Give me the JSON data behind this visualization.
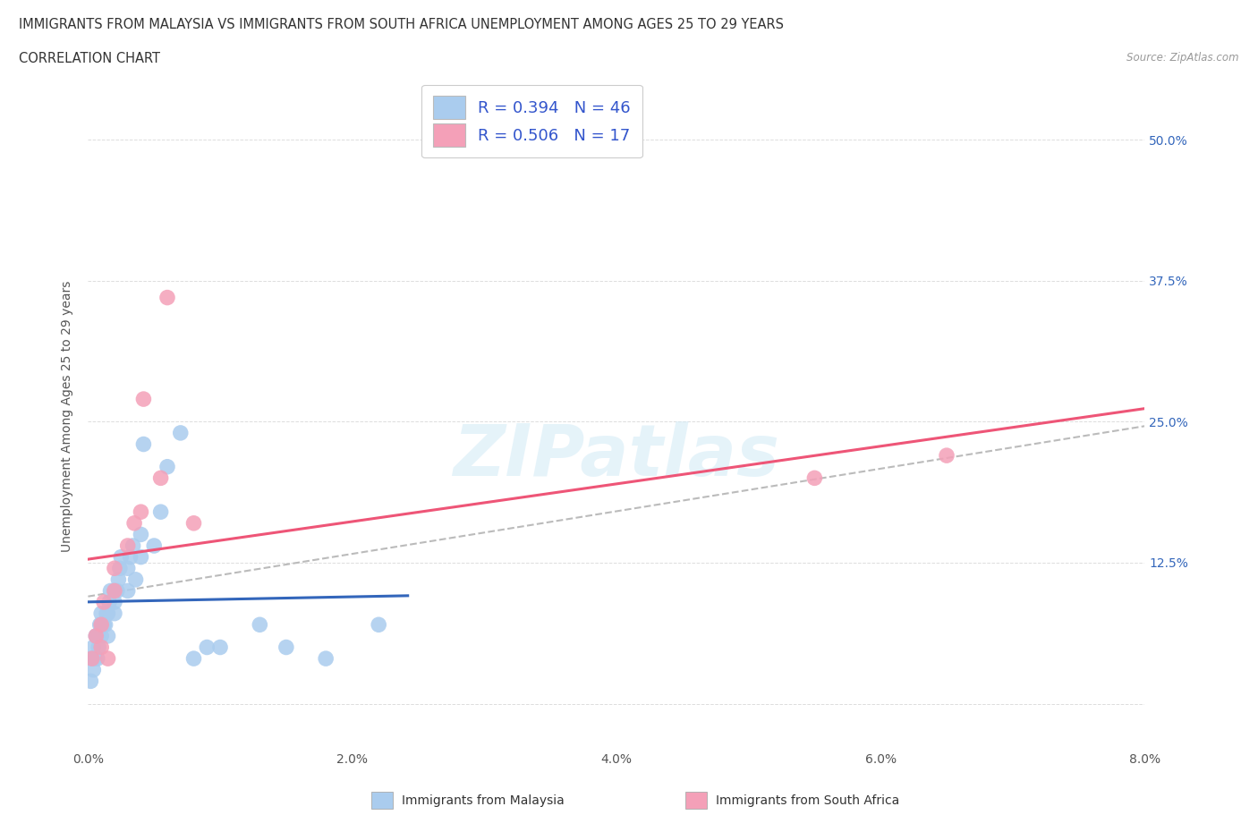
{
  "title_line1": "IMMIGRANTS FROM MALAYSIA VS IMMIGRANTS FROM SOUTH AFRICA UNEMPLOYMENT AMONG AGES 25 TO 29 YEARS",
  "title_line2": "CORRELATION CHART",
  "source_text": "Source: ZipAtlas.com",
  "ylabel": "Unemployment Among Ages 25 to 29 years",
  "xlim": [
    0.0,
    0.08
  ],
  "ylim": [
    -0.04,
    0.55
  ],
  "xtick_vals": [
    0.0,
    0.02,
    0.04,
    0.06,
    0.08
  ],
  "xtick_labels": [
    "0.0%",
    "2.0%",
    "4.0%",
    "6.0%",
    "8.0%"
  ],
  "ytick_vals": [
    0.0,
    0.125,
    0.25,
    0.375,
    0.5
  ],
  "ytick_labels_right": [
    "",
    "12.5%",
    "25.0%",
    "37.5%",
    "50.0%"
  ],
  "malaysia_R": 0.394,
  "malaysia_N": 46,
  "southafrica_R": 0.506,
  "southafrica_N": 17,
  "malaysia_color": "#aaccee",
  "southafrica_color": "#f4a0b8",
  "malaysia_line_color": "#3366bb",
  "southafrica_line_color": "#ee5577",
  "grid_color": "#dddddd",
  "malaysia_x": [
    0.0002,
    0.0003,
    0.0004,
    0.0004,
    0.0005,
    0.0006,
    0.0007,
    0.0007,
    0.0008,
    0.0009,
    0.001,
    0.001,
    0.001,
    0.0012,
    0.0013,
    0.0014,
    0.0015,
    0.0015,
    0.0016,
    0.0017,
    0.002,
    0.002,
    0.002,
    0.0022,
    0.0023,
    0.0024,
    0.0025,
    0.003,
    0.003,
    0.0032,
    0.0034,
    0.0036,
    0.004,
    0.004,
    0.0042,
    0.005,
    0.0055,
    0.006,
    0.007,
    0.008,
    0.009,
    0.01,
    0.013,
    0.015,
    0.018,
    0.022
  ],
  "malaysia_y": [
    0.02,
    0.04,
    0.03,
    0.05,
    0.04,
    0.06,
    0.04,
    0.06,
    0.05,
    0.07,
    0.06,
    0.07,
    0.08,
    0.07,
    0.07,
    0.08,
    0.06,
    0.08,
    0.09,
    0.1,
    0.08,
    0.1,
    0.09,
    0.1,
    0.11,
    0.12,
    0.13,
    0.1,
    0.12,
    0.13,
    0.14,
    0.11,
    0.13,
    0.15,
    0.23,
    0.14,
    0.17,
    0.21,
    0.24,
    0.04,
    0.05,
    0.05,
    0.07,
    0.05,
    0.04,
    0.07
  ],
  "sa_x": [
    0.0003,
    0.0006,
    0.001,
    0.001,
    0.0012,
    0.0015,
    0.002,
    0.002,
    0.003,
    0.0035,
    0.004,
    0.0042,
    0.0055,
    0.006,
    0.008,
    0.055,
    0.065
  ],
  "sa_y": [
    0.04,
    0.06,
    0.05,
    0.07,
    0.09,
    0.04,
    0.1,
    0.12,
    0.14,
    0.16,
    0.17,
    0.27,
    0.2,
    0.36,
    0.16,
    0.2,
    0.22
  ]
}
